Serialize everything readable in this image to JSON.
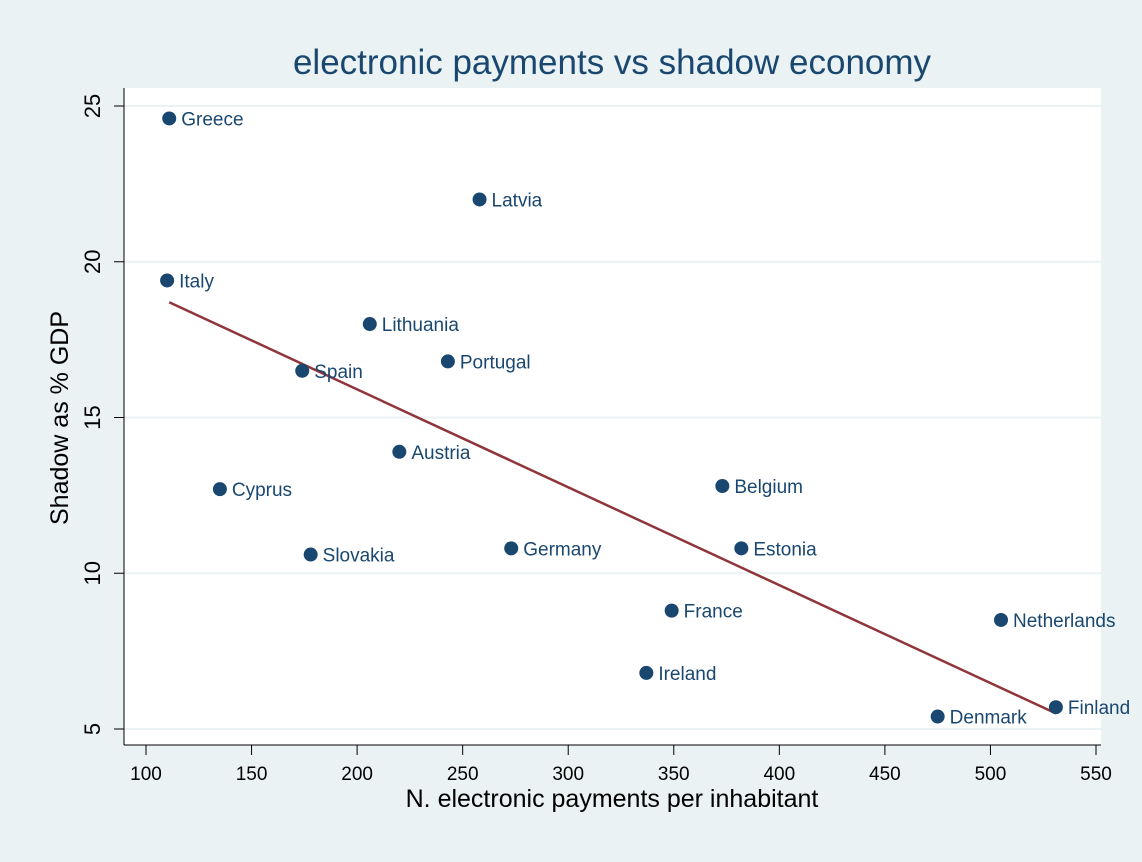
{
  "chart_data": {
    "type": "scatter",
    "title": "electronic payments vs shadow economy",
    "xlabel": "N. electronic payments per inhabitant",
    "ylabel": "Shadow as % GDP",
    "xlim": [
      90,
      555
    ],
    "ylim": [
      4.5,
      26.0
    ],
    "xticks": [
      100,
      150,
      200,
      250,
      300,
      350,
      400,
      450,
      500,
      550
    ],
    "yticks": [
      5,
      10,
      15,
      20,
      25
    ],
    "grid": "horizontal",
    "points": [
      {
        "label": "Greece",
        "x": 111,
        "y": 24.6
      },
      {
        "label": "Latvia",
        "x": 258,
        "y": 22.0
      },
      {
        "label": "Italy",
        "x": 110,
        "y": 19.4
      },
      {
        "label": "Lithuania",
        "x": 206,
        "y": 18.0
      },
      {
        "label": "Portugal",
        "x": 243,
        "y": 16.8
      },
      {
        "label": "Spain",
        "x": 174,
        "y": 16.5
      },
      {
        "label": "Austria",
        "x": 220,
        "y": 13.9
      },
      {
        "label": "Cyprus",
        "x": 135,
        "y": 12.7
      },
      {
        "label": "Belgium",
        "x": 373,
        "y": 12.8
      },
      {
        "label": "Slovakia",
        "x": 178,
        "y": 10.6
      },
      {
        "label": "Germany",
        "x": 273,
        "y": 10.8
      },
      {
        "label": "Estonia",
        "x": 382,
        "y": 10.8
      },
      {
        "label": "France",
        "x": 349,
        "y": 8.8
      },
      {
        "label": "Netherlands",
        "x": 505,
        "y": 8.5
      },
      {
        "label": "Ireland",
        "x": 337,
        "y": 6.8
      },
      {
        "label": "Denmark",
        "x": 475,
        "y": 5.4
      },
      {
        "label": "Finland",
        "x": 531,
        "y": 5.7
      }
    ],
    "fit_line": {
      "x": [
        111,
        531
      ],
      "y": [
        18.7,
        5.5
      ]
    },
    "colors": {
      "background": "#eaf2f3",
      "plot_area": "#ffffff",
      "marker": "#1a476f",
      "fit_line": "#90353b",
      "text": "#1a476f",
      "grid": "#eaf2f3",
      "axis": "#000000"
    }
  }
}
